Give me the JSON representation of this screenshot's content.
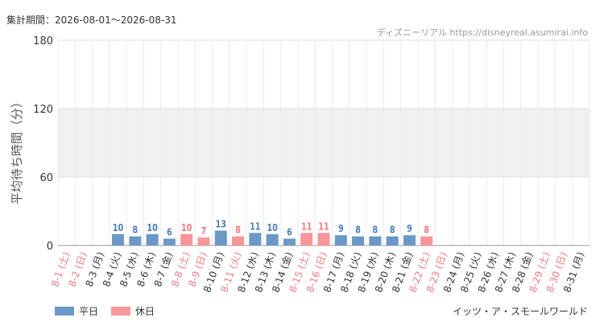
{
  "header": {
    "period": "集計期間：2026-08-01～2026-08-31",
    "source": "ディズニーリアル https://disneyreal.asumirai.info"
  },
  "footer": {
    "ride_name": "イッツ・ア・スモールワールド"
  },
  "colors": {
    "weekday": "#6b98c6",
    "holiday": "#f7969b",
    "weekday_label": "#4a7fb5",
    "holiday_label": "#f07b82",
    "band": "#f0f0f0"
  },
  "chart_data": {
    "type": "bar",
    "ylabel": "平均待ち時間（分）",
    "ylim": [
      0,
      180
    ],
    "yticks": [
      0,
      60,
      120,
      180
    ],
    "grid": true,
    "shaded_band": [
      60,
      120
    ],
    "legend": {
      "position": "bottom-left",
      "entries": [
        "平日",
        "休日"
      ]
    },
    "categories": [
      "8-1 (土)",
      "8-2 (日)",
      "8-3 (月)",
      "8-4 (火)",
      "8-5 (水)",
      "8-6 (木)",
      "8-7 (金)",
      "8-8 (土)",
      "8-9 (日)",
      "8-10 (月)",
      "8-11 (火)",
      "8-12 (水)",
      "8-13 (木)",
      "8-14 (金)",
      "8-15 (土)",
      "8-16 (日)",
      "8-17 (月)",
      "8-18 (火)",
      "8-19 (水)",
      "8-20 (木)",
      "8-21 (金)",
      "8-22 (土)",
      "8-23 (日)",
      "8-24 (月)",
      "8-25 (火)",
      "8-26 (水)",
      "8-27 (木)",
      "8-28 (金)",
      "8-29 (土)",
      "8-30 (日)",
      "8-31 (月)"
    ],
    "day_type": [
      "holiday",
      "holiday",
      "weekday",
      "weekday",
      "weekday",
      "weekday",
      "weekday",
      "holiday",
      "holiday",
      "weekday",
      "holiday",
      "weekday",
      "weekday",
      "weekday",
      "holiday",
      "holiday",
      "weekday",
      "weekday",
      "weekday",
      "weekday",
      "weekday",
      "holiday",
      "holiday",
      "weekday",
      "weekday",
      "weekday",
      "weekday",
      "weekday",
      "holiday",
      "holiday",
      "weekday"
    ],
    "values": [
      null,
      null,
      null,
      10,
      8,
      10,
      6,
      10,
      7,
      13,
      8,
      11,
      10,
      6,
      11,
      11,
      9,
      8,
      8,
      8,
      9,
      8,
      null,
      null,
      null,
      null,
      null,
      null,
      null,
      null,
      null
    ]
  }
}
